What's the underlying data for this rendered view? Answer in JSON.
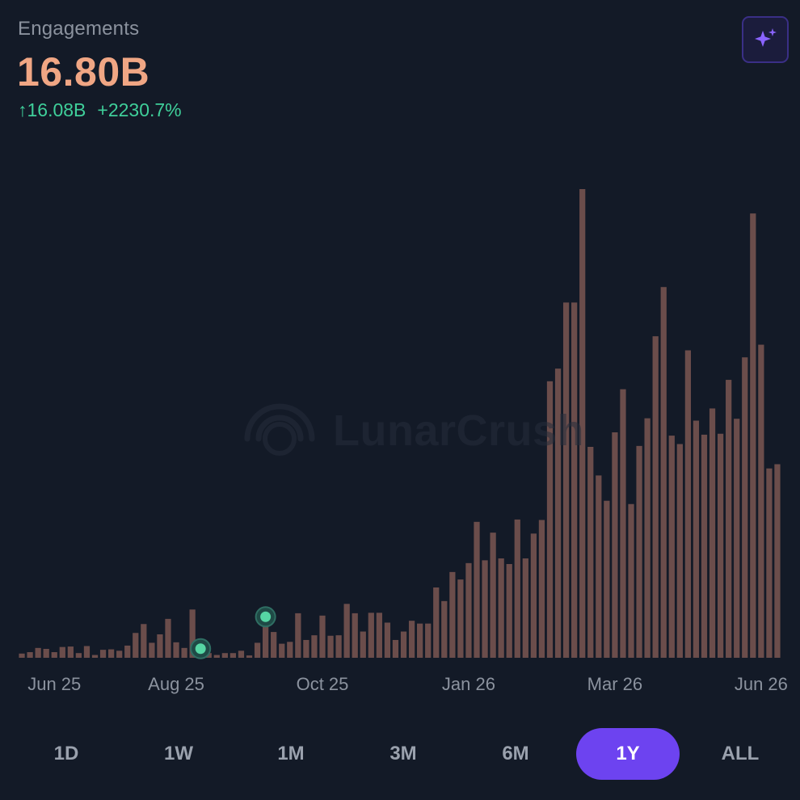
{
  "metric": {
    "label": "Engagements",
    "value": "16.80B",
    "change_abs": "↑16.08B",
    "change_pct": "+2230.7%"
  },
  "ai_button": {
    "icon": "sparkle-icon"
  },
  "watermark": {
    "text": "LunarCrush"
  },
  "range_tabs": [
    {
      "label": "1D",
      "active": false
    },
    {
      "label": "1W",
      "active": false
    },
    {
      "label": "1M",
      "active": false
    },
    {
      "label": "3M",
      "active": false
    },
    {
      "label": "6M",
      "active": false
    },
    {
      "label": "1Y",
      "active": true
    },
    {
      "label": "ALL",
      "active": false
    }
  ],
  "colors": {
    "background": "#131a27",
    "bar": "#6b4d4b",
    "value": "#f0a684",
    "positive": "#3fcf9a",
    "accent": "#6d43f0",
    "marker": "#56d6a4"
  },
  "chart_data": {
    "type": "bar",
    "title": "",
    "xlabel": "",
    "ylabel": "",
    "ylim": [
      0,
      100
    ],
    "x_tick_labels": [
      "Jun 25",
      "Aug 25",
      "Oct 25",
      "Jan 26",
      "Mar 26",
      "Jun 26"
    ],
    "x_tick_bar_index": [
      4,
      19,
      37,
      55,
      73,
      91
    ],
    "marker_bar_index": [
      22,
      30
    ],
    "values": [
      0.9,
      1.2,
      2.1,
      1.9,
      1.2,
      2.3,
      2.4,
      1.0,
      2.5,
      0.6,
      1.7,
      1.8,
      1.5,
      2.6,
      5.3,
      7.2,
      3.2,
      5.0,
      8.3,
      3.3,
      2.1,
      10.3,
      1.6,
      1.0,
      0.6,
      1.0,
      1.0,
      1.5,
      0.5,
      3.2,
      8.4,
      5.5,
      3.0,
      3.4,
      9.5,
      3.8,
      4.8,
      9.0,
      4.7,
      4.8,
      11.5,
      9.5,
      5.6,
      9.6,
      9.6,
      7.5,
      3.8,
      5.6,
      7.9,
      7.3,
      7.3,
      15.0,
      12.1,
      18.3,
      16.7,
      20.2,
      29.0,
      20.8,
      26.7,
      21.2,
      20.0,
      29.5,
      21.2,
      26.5,
      29.4,
      59.0,
      61.7,
      75.8,
      75.8,
      100,
      45.0,
      38.9,
      33.5,
      48.1,
      57.3,
      32.8,
      45.2,
      51.1,
      68.6,
      79.1,
      47.4,
      45.6,
      65.6,
      50.6,
      47.6,
      53.2,
      47.8,
      59.3,
      51.0,
      64.1,
      94.8,
      66.8,
      40.4,
      41.3
    ],
    "grid": false,
    "legend": "none"
  }
}
